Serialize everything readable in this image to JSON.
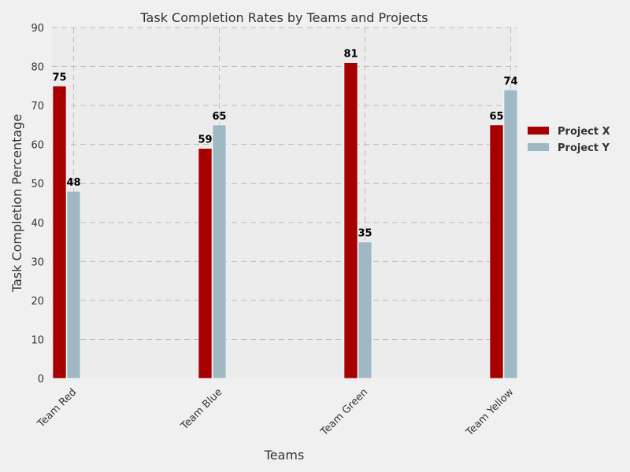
{
  "chart_data": {
    "type": "bar",
    "title": "Task Completion Rates by Teams and Projects",
    "xlabel": "Teams",
    "ylabel": "Task Completion Percentage",
    "categories": [
      "Team Red",
      "Team Blue",
      "Team Green",
      "Team Yellow"
    ],
    "series": [
      {
        "name": "Project X",
        "values": [
          75,
          59,
          81,
          65
        ],
        "color": "#a60000"
      },
      {
        "name": "Project Y",
        "values": [
          48,
          65,
          35,
          74
        ],
        "color": "#9eb9c3"
      }
    ],
    "ylim": [
      0,
      90
    ],
    "yticks": [
      0,
      10,
      20,
      30,
      40,
      50,
      60,
      70,
      80,
      90
    ],
    "grid": true,
    "legend_position": "right",
    "background": "#f0f0f0",
    "plot_background": "#ececec"
  }
}
